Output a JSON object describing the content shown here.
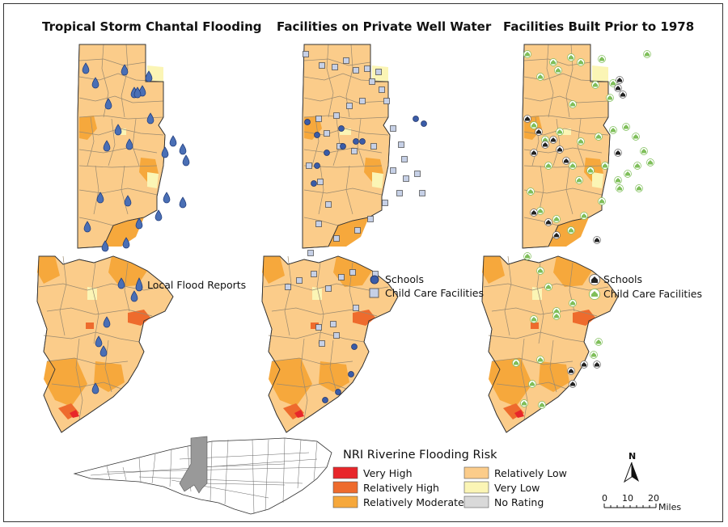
{
  "panels": [
    {
      "title": "Tropical Storm Chantal Flooding"
    },
    {
      "title": "Facilities on Private Well Water"
    },
    {
      "title": "Facilities Built Prior to 1978"
    }
  ],
  "panel_legends": {
    "flood": {
      "label": "Local Flood Reports"
    },
    "well": {
      "schools": "Schools",
      "childcare": "Child Care Facilities"
    },
    "pre1978": {
      "schools": "Schools",
      "childcare": "Child Care Facilities"
    }
  },
  "nri_legend": {
    "title": "NRI Riverine Flooding Risk",
    "items": [
      {
        "label": "Very High",
        "color": "#e8262a"
      },
      {
        "label": "Relatively High",
        "color": "#ee6b2d"
      },
      {
        "label": "Relatively Moderate",
        "color": "#f6a83c"
      },
      {
        "label": "Relatively Low",
        "color": "#fbcc8a"
      },
      {
        "label": "Very Low",
        "color": "#fbf5b5"
      },
      {
        "label": "No Rating",
        "color": "#d9d9d9"
      }
    ]
  },
  "scale_bar": {
    "ticks": [
      "0",
      "10",
      "20"
    ],
    "unit": "Miles"
  },
  "north_arrow": {
    "label": "N"
  },
  "colors": {
    "flood_marker": "#4a6fb5",
    "school_marker": "#3a5ca8",
    "childcare_marker": "#c6d0e6",
    "pre1978_school": "#222222",
    "pre1978_childcare": "#7fbf5a",
    "inset_highlight": "#999999"
  },
  "icons": [
    "water-drop-icon",
    "school-circle-icon",
    "childcare-square-icon",
    "school-building-icon",
    "house-icon",
    "north-arrow-icon"
  ]
}
